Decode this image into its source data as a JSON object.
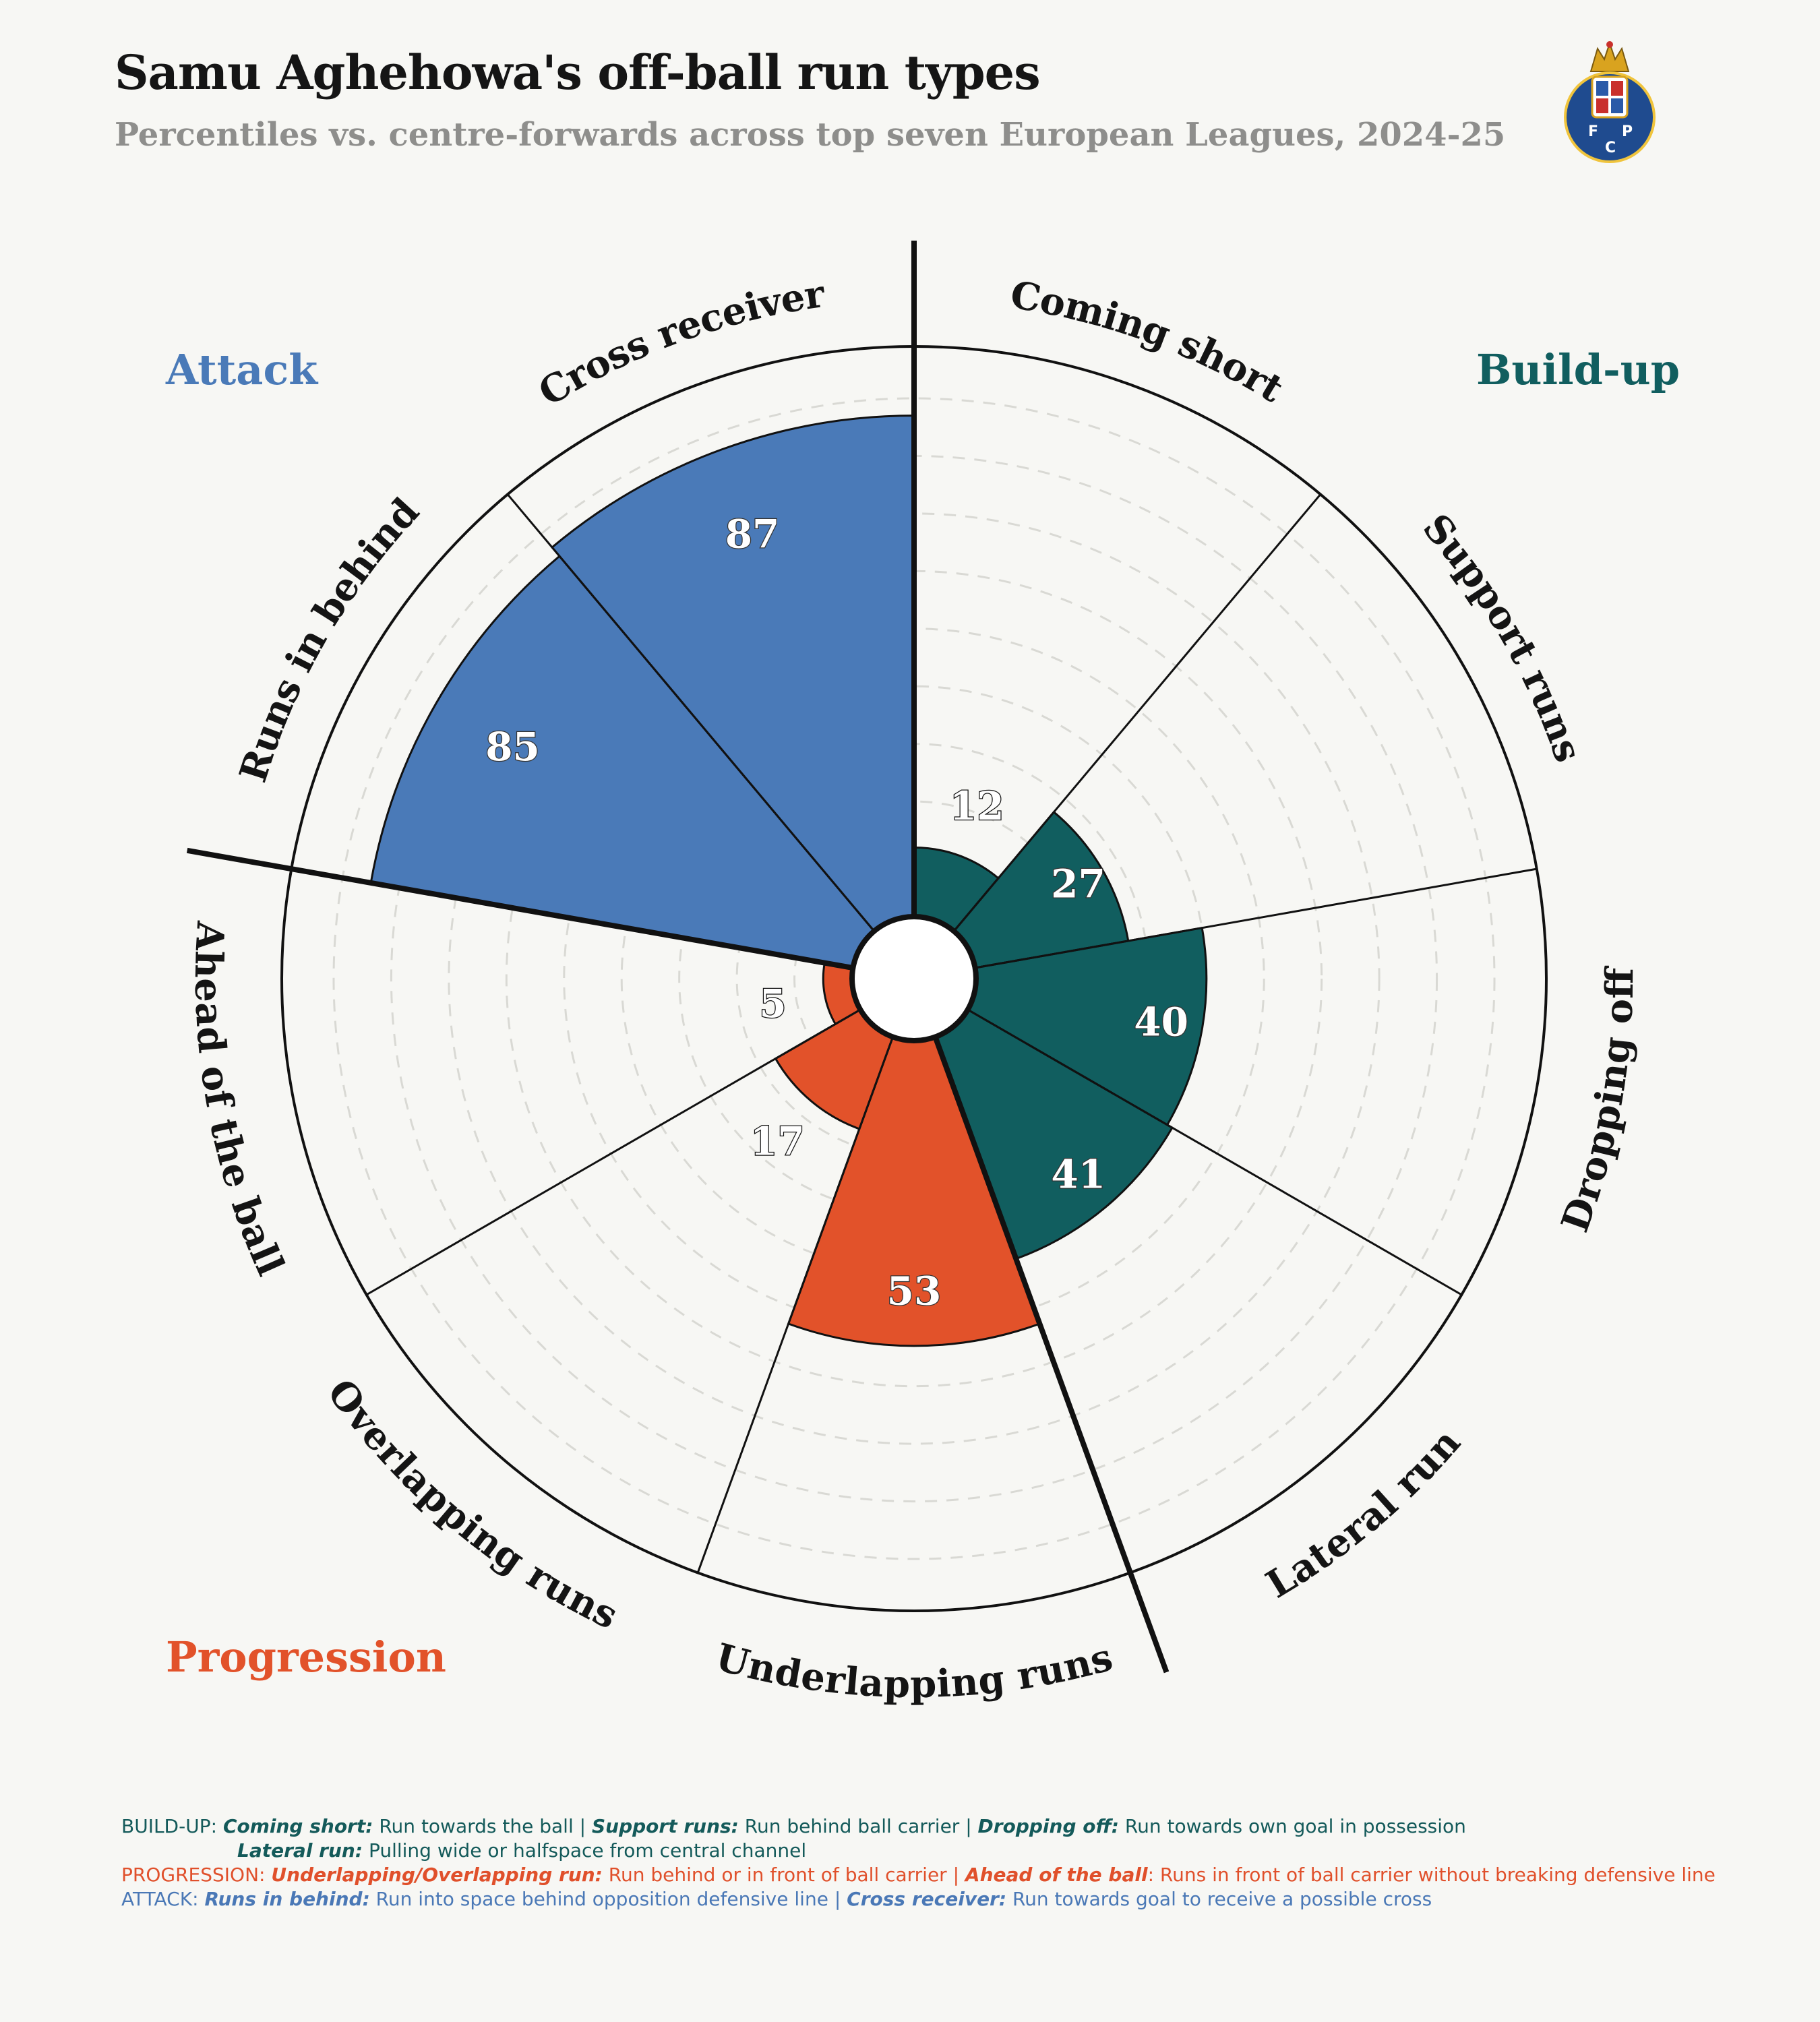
{
  "header": {
    "title": "Samu Aghehowa's off-ball run types",
    "subtitle": "Percentiles vs. centre-forwards across top seven European Leagues, 2024-25"
  },
  "logo": {
    "letters": [
      "F",
      "C",
      "P"
    ]
  },
  "groups": {
    "attack": {
      "label": "Attack",
      "color": "#4a7ab8"
    },
    "buildup": {
      "label": "Build-up",
      "color": "#115e5f"
    },
    "progression": {
      "label": "Progression",
      "color": "#e2522a"
    }
  },
  "chart_data": {
    "type": "polar-bar",
    "title": "Samu Aghehowa's off-ball run types",
    "subtitle": "Percentiles vs. centre-forwards across top seven European Leagues, 2024-25",
    "range": [
      0,
      100
    ],
    "grid": true,
    "categories": [
      "Coming short",
      "Support runs",
      "Dropping off",
      "Lateral run",
      "Underlapping runs",
      "Overlapping runs",
      "Ahead of the ball",
      "Runs in behind",
      "Cross receiver"
    ],
    "values": [
      12,
      27,
      40,
      41,
      53,
      17,
      5,
      85,
      87
    ],
    "group_of": [
      "buildup",
      "buildup",
      "buildup",
      "buildup",
      "progression",
      "progression",
      "progression",
      "attack",
      "attack"
    ]
  },
  "footer": {
    "buildup": {
      "prefix": "BUILD-UP: ",
      "t1": "Coming short:",
      "d1": " Run towards the ball | ",
      "t2": "Support runs:",
      "d2": " Run behind ball carrier | ",
      "t3": "Dropping off:",
      "d3": " Run towards own goal in possession",
      "t4": "Lateral run:",
      "d4": " Pulling wide or halfspace from central channel"
    },
    "progression": {
      "prefix": "PROGRESSION: ",
      "t1": "Underlapping/Overlapping run:",
      "d1": " Run behind or in front of ball carrier | ",
      "t2": "Ahead of the ball",
      "d2": ": Runs in front of ball carrier without breaking defensive line"
    },
    "attack": {
      "prefix": "ATTACK: ",
      "t1": "Runs in behind:",
      "d1": " Run into space behind opposition defensive line | ",
      "t2": "Cross receiver:",
      "d2": " Run towards goal to receive a possible cross"
    }
  }
}
